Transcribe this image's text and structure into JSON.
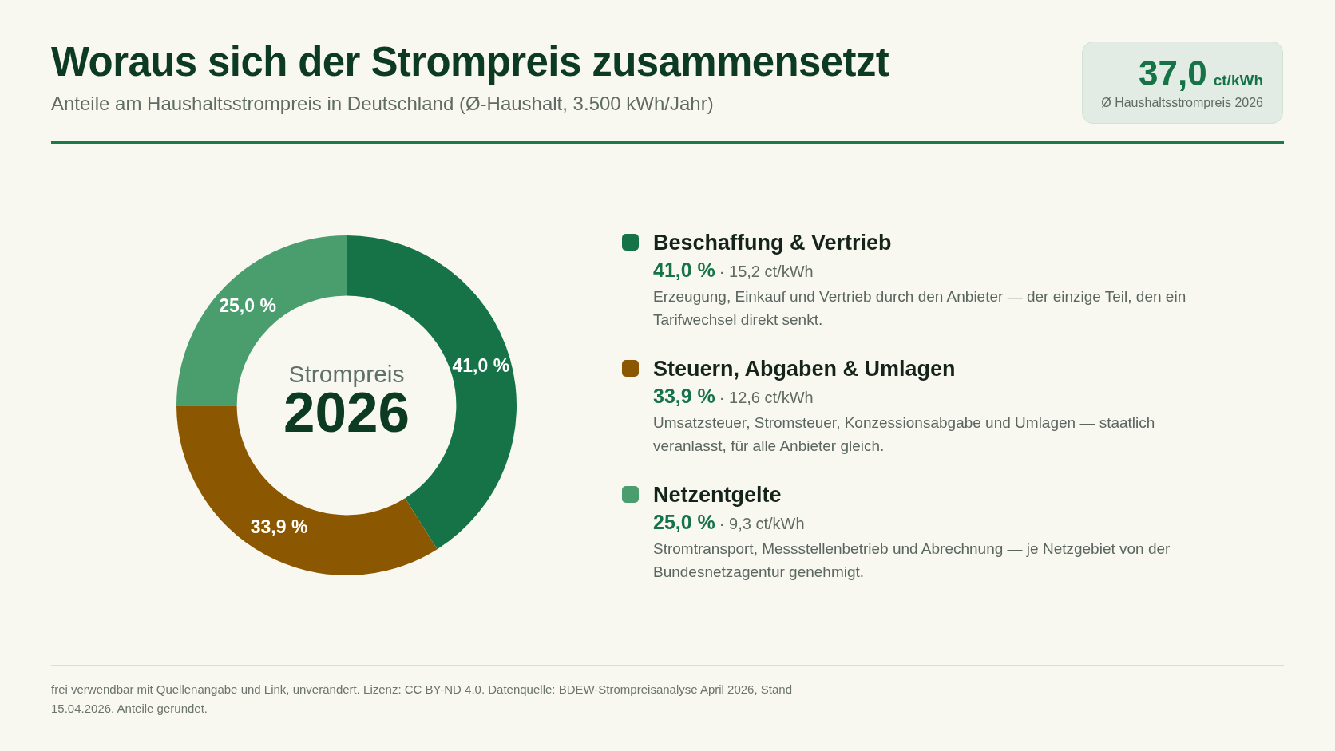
{
  "chart_data": {
    "type": "donut",
    "title": "Woraus sich der Strompreis zusammensetzt",
    "subtitle": "Anteile am Haushaltsstrompreis in Deutschland (Ø-Haushalt, 3.500 kWh/Jahr)",
    "categories": [
      "Beschaffung & Vertrieb",
      "Steuern, Abgaben & Umlagen",
      "Netzentgelte"
    ],
    "values": [
      41.0,
      33.9,
      25.0
    ],
    "colors": [
      "#157347",
      "#8b5700",
      "#4a9e6e"
    ],
    "value_labels": [
      "41,0 %",
      "33,9 %",
      "25,0 %"
    ],
    "legend": "right",
    "annotations": [
      "Strompreis",
      "2026",
      "37,0",
      "ct/kWh",
      "Ø Haushaltsstrompreis 2026",
      "· 15,2 ct/kWh",
      "Erzeugung, Einkauf und Vertrieb durch den Anbieter — der einzige Teil, den ein Tarifwechsel direkt senkt.",
      "· 12,6 ct/kWh",
      "Umsatzsteuer, Stromsteuer, Konzessionsabgabe und Umlagen — staatlich veranlasst, für alle Anbieter gleich.",
      "· 9,3 ct/kWh",
      "Stromtransport, Messstellenbetrieb und Abrechnung — je Netzgebiet von der Bundesnetzagentur genehmigt.",
      "frei verwendbar mit Quellenangabe und Link, unverändert. Lizenz: CC BY-ND 4.0. Datenquelle: BDEW-Strompreisanalyse April 2026, Stand 15.04.2026. Anteile gerundet."
    ]
  }
}
